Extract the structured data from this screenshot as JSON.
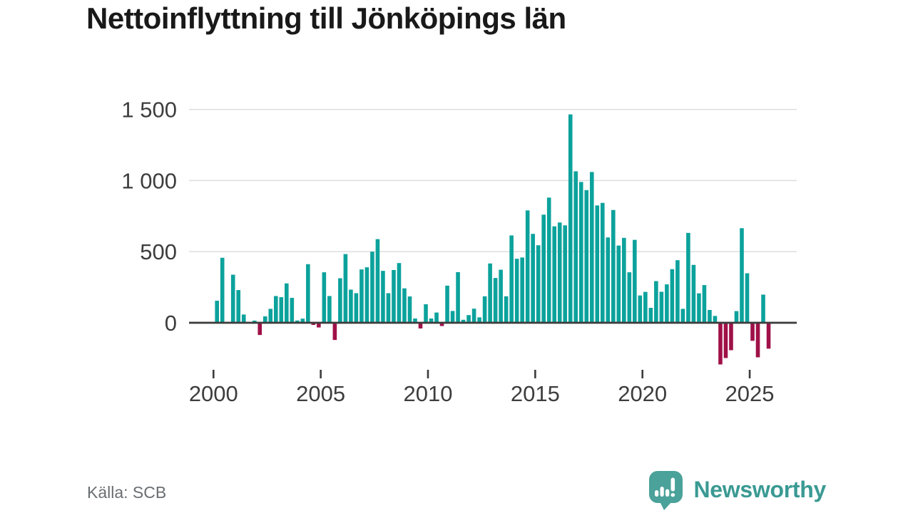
{
  "header": {
    "title": "Nettoinflyttning till Jönköpings län"
  },
  "footer": {
    "source_label": "Källa: SCB",
    "brand": "Newsworthy"
  },
  "brand_icon": "newsworthy-speech-bubble-with-bar-chart-and-exclamation",
  "chart_data": {
    "type": "bar",
    "title": "Nettoinflyttning till Jönköpings län",
    "xlabel": "",
    "ylabel": "",
    "x_unit": "quarter",
    "start_period": "2000 Q1",
    "end_period": "2025 Q4",
    "grid": true,
    "legend": false,
    "ylim": [
      -350,
      1550
    ],
    "y_ticks": [
      {
        "label": "1 500",
        "value": 1500
      },
      {
        "label": "1 000",
        "value": 1000
      },
      {
        "label": "500",
        "value": 500
      },
      {
        "label": "0",
        "value": 0
      }
    ],
    "x_ticks": [
      {
        "label": "2000",
        "year": 2000
      },
      {
        "label": "2005",
        "year": 2005
      },
      {
        "label": "2010",
        "year": 2010
      },
      {
        "label": "2015",
        "year": 2015
      },
      {
        "label": "2020",
        "year": 2020
      },
      {
        "label": "2025",
        "year": 2025
      }
    ],
    "categories": [
      "2000 Q1",
      "2000 Q2",
      "2000 Q3",
      "2000 Q4",
      "2001 Q1",
      "2001 Q2",
      "2001 Q3",
      "2001 Q4",
      "2002 Q1",
      "2002 Q2",
      "2002 Q3",
      "2002 Q4",
      "2003 Q1",
      "2003 Q2",
      "2003 Q3",
      "2003 Q4",
      "2004 Q1",
      "2004 Q2",
      "2004 Q3",
      "2004 Q4",
      "2005 Q1",
      "2005 Q2",
      "2005 Q3",
      "2005 Q4",
      "2006 Q1",
      "2006 Q2",
      "2006 Q3",
      "2006 Q4",
      "2007 Q1",
      "2007 Q2",
      "2007 Q3",
      "2007 Q4",
      "2008 Q1",
      "2008 Q2",
      "2008 Q3",
      "2008 Q4",
      "2009 Q1",
      "2009 Q2",
      "2009 Q3",
      "2009 Q4",
      "2010 Q1",
      "2010 Q2",
      "2010 Q3",
      "2010 Q4",
      "2011 Q1",
      "2011 Q2",
      "2011 Q3",
      "2011 Q4",
      "2012 Q1",
      "2012 Q2",
      "2012 Q3",
      "2012 Q4",
      "2013 Q1",
      "2013 Q2",
      "2013 Q3",
      "2013 Q4",
      "2014 Q1",
      "2014 Q2",
      "2014 Q3",
      "2014 Q4",
      "2015 Q1",
      "2015 Q2",
      "2015 Q3",
      "2015 Q4",
      "2016 Q1",
      "2016 Q2",
      "2016 Q3",
      "2016 Q4",
      "2017 Q1",
      "2017 Q2",
      "2017 Q3",
      "2017 Q4",
      "2018 Q1",
      "2018 Q2",
      "2018 Q3",
      "2018 Q4",
      "2019 Q1",
      "2019 Q2",
      "2019 Q3",
      "2019 Q4",
      "2020 Q1",
      "2020 Q2",
      "2020 Q3",
      "2020 Q4",
      "2021 Q1",
      "2021 Q2",
      "2021 Q3",
      "2021 Q4",
      "2022 Q1",
      "2022 Q2",
      "2022 Q3",
      "2022 Q4",
      "2023 Q1",
      "2023 Q2",
      "2023 Q3",
      "2023 Q4",
      "2024 Q1",
      "2024 Q2",
      "2024 Q3",
      "2024 Q4",
      "2025 Q1",
      "2025 Q2",
      "2025 Q3",
      "2025 Q4"
    ],
    "values": [
      155,
      457,
      0,
      338,
      230,
      58,
      0,
      15,
      -86,
      45,
      98,
      188,
      180,
      277,
      175,
      16,
      29,
      412,
      -15,
      -33,
      355,
      188,
      -121,
      313,
      483,
      233,
      208,
      375,
      390,
      500,
      588,
      365,
      208,
      371,
      420,
      242,
      185,
      30,
      -40,
      130,
      30,
      72,
      -23,
      261,
      83,
      356,
      21,
      54,
      99,
      38,
      186,
      417,
      315,
      373,
      186,
      614,
      450,
      459,
      790,
      625,
      545,
      760,
      880,
      678,
      705,
      685,
      1465,
      1065,
      990,
      933,
      1060,
      825,
      843,
      600,
      793,
      543,
      597,
      355,
      583,
      192,
      217,
      105,
      293,
      218,
      270,
      377,
      440,
      98,
      632,
      407,
      207,
      265,
      90,
      48,
      -293,
      -248,
      -193,
      82,
      665,
      348,
      -127,
      -243,
      198,
      -182
    ],
    "colors": {
      "positive": "#0ca29c",
      "negative": "#9f1148",
      "gridline": "#dcdcdc",
      "axis": "#3c3c3c",
      "tick_text": "#3d3d3d",
      "title_text": "#191919",
      "source_text": "#696e72",
      "brand": "#3a9a93"
    }
  }
}
